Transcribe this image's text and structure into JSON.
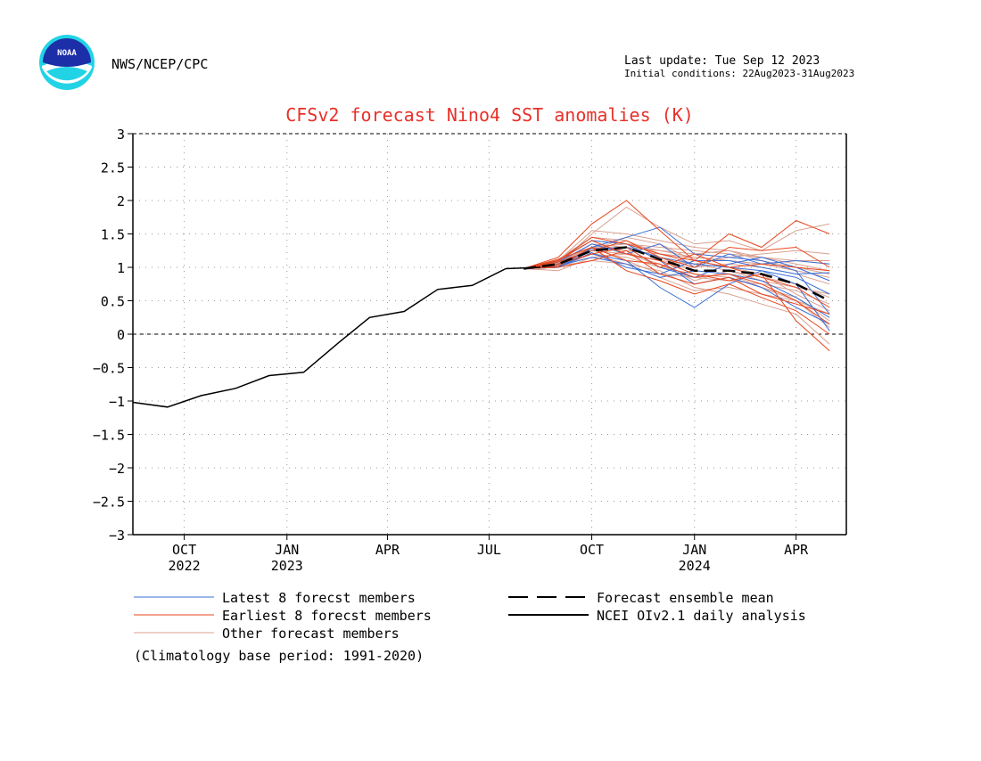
{
  "header": {
    "agency": "NWS/NCEP/CPC",
    "logo_text": "NOAA",
    "last_update": "Last update: Tue Sep 12 2023",
    "initial_conditions": "Initial conditions: 22Aug2023-31Aug2023"
  },
  "chart_data": {
    "type": "line",
    "title": "CFSv2 forecast Nino4 SST anomalies (K)",
    "xlabel": "",
    "ylabel": "",
    "ylim": [
      -3,
      3
    ],
    "yticks": [
      -3,
      -2.5,
      -2,
      -1.5,
      -1,
      -0.5,
      0,
      0.5,
      1,
      1.5,
      2,
      2.5,
      3
    ],
    "xlim": [
      "2022-08-16",
      "2024-05-16"
    ],
    "xticks": [
      {
        "date": "2022-10-01",
        "label": "OCT",
        "year": "2022"
      },
      {
        "date": "2023-01-01",
        "label": "JAN",
        "year": "2023"
      },
      {
        "date": "2023-04-01",
        "label": "APR",
        "year": ""
      },
      {
        "date": "2023-07-01",
        "label": "JUL",
        "year": ""
      },
      {
        "date": "2023-10-01",
        "label": "OCT",
        "year": ""
      },
      {
        "date": "2024-01-01",
        "label": "JAN",
        "year": "2024"
      },
      {
        "date": "2024-04-01",
        "label": "APR",
        "year": ""
      }
    ],
    "grid": true,
    "zero_line": true,
    "legend": {
      "placement": "bottom",
      "items": [
        {
          "label": "Latest 8 forecst members",
          "color": "#3a6fd8",
          "style": "thin"
        },
        {
          "label": "Earliest 8 forecst members",
          "color": "#e8461e",
          "style": "thin"
        },
        {
          "label": "Other forecast members",
          "color": "#d9a090",
          "style": "thin"
        },
        {
          "label": "Forecast ensemble mean",
          "color": "#000000",
          "style": "dashed"
        },
        {
          "label": "NCEI OIv2.1 daily analysis",
          "color": "#000000",
          "style": "solid"
        }
      ]
    },
    "note": "(Climatology base period: 1991-2020)",
    "colors": {
      "title": "#e8312a",
      "latest": "#3a6fd8",
      "earliest": "#e8461e",
      "other": "#d9a090"
    },
    "forecast_dates": [
      "2023-08-01",
      "2023-09-01",
      "2023-10-01",
      "2023-11-01",
      "2023-12-01",
      "2024-01-01",
      "2024-02-01",
      "2024-03-01",
      "2024-04-01",
      "2024-05-01"
    ],
    "analysis": {
      "name": "NCEI OIv2.1 daily analysis",
      "x": [
        "2022-08-16",
        "2022-09-16",
        "2022-10-16",
        "2022-11-16",
        "2022-12-16",
        "2023-01-16",
        "2023-02-16",
        "2023-03-16",
        "2023-04-16",
        "2023-05-16",
        "2023-06-16",
        "2023-07-16",
        "2023-08-16"
      ],
      "y": [
        -1.02,
        -1.09,
        -0.92,
        -0.81,
        -0.62,
        -0.57,
        -0.13,
        0.25,
        0.34,
        0.67,
        0.73,
        0.98,
        1.0
      ]
    },
    "ensemble_mean": {
      "name": "Forecast ensemble mean",
      "x": [
        "2023-08-01",
        "2023-09-01",
        "2023-10-01",
        "2023-11-01",
        "2023-12-01",
        "2024-01-01",
        "2024-02-01",
        "2024-03-01",
        "2024-04-01",
        "2024-05-01"
      ],
      "y": [
        0.98,
        1.05,
        1.25,
        1.3,
        1.12,
        0.95,
        0.95,
        0.9,
        0.75,
        0.5
      ]
    },
    "latest_members": [
      [
        0.98,
        1.0,
        1.3,
        1.45,
        1.6,
        1.2,
        1.15,
        1.1,
        0.95,
        0.3
      ],
      [
        0.98,
        1.05,
        1.2,
        1.1,
        0.7,
        0.4,
        0.75,
        0.95,
        0.75,
        0.05
      ],
      [
        0.98,
        1.0,
        1.25,
        1.3,
        1.0,
        0.85,
        1.05,
        1.15,
        1.0,
        0.8
      ],
      [
        0.98,
        1.08,
        1.35,
        1.2,
        1.35,
        1.0,
        1.2,
        1.05,
        1.1,
        1.05
      ],
      [
        0.98,
        1.02,
        1.15,
        1.05,
        0.85,
        0.95,
        0.9,
        0.8,
        0.55,
        0.25
      ],
      [
        0.98,
        1.1,
        1.4,
        1.35,
        1.1,
        0.75,
        0.85,
        0.7,
        0.4,
        0.15
      ],
      [
        0.98,
        1.05,
        1.28,
        1.3,
        1.15,
        1.05,
        1.0,
        0.95,
        0.85,
        0.6
      ],
      [
        0.98,
        1.0,
        1.22,
        1.0,
        0.9,
        1.1,
        1.1,
        1.0,
        0.9,
        0.92
      ]
    ],
    "earliest_members": [
      [
        0.98,
        1.15,
        1.65,
        2.0,
        1.55,
        1.1,
        1.5,
        1.3,
        1.7,
        1.5
      ],
      [
        0.98,
        1.1,
        1.4,
        1.2,
        1.1,
        0.9,
        0.8,
        0.9,
        0.2,
        -0.25
      ],
      [
        0.98,
        1.05,
        1.2,
        1.3,
        1.0,
        1.2,
        1.0,
        1.05,
        1.0,
        0.95
      ],
      [
        0.98,
        1.0,
        1.1,
        1.25,
        0.9,
        0.75,
        0.85,
        0.6,
        0.45,
        0.3
      ],
      [
        0.98,
        1.12,
        1.3,
        1.1,
        1.05,
        0.85,
        0.9,
        0.75,
        0.5,
        0.15
      ],
      [
        0.98,
        1.08,
        1.25,
        1.4,
        1.15,
        1.0,
        1.3,
        1.25,
        1.3,
        1.0
      ],
      [
        0.98,
        1.02,
        1.3,
        0.95,
        0.8,
        0.6,
        0.75,
        0.55,
        0.35,
        0.0
      ],
      [
        0.98,
        1.1,
        1.45,
        1.35,
        1.2,
        1.1,
        1.0,
        0.85,
        0.7,
        0.4
      ]
    ],
    "other_members": [
      [
        0.98,
        1.05,
        1.5,
        1.9,
        1.6,
        1.35,
        1.4,
        1.25,
        1.55,
        1.65
      ],
      [
        0.98,
        1.1,
        1.3,
        1.25,
        1.2,
        1.05,
        1.15,
        1.2,
        1.25,
        1.2
      ],
      [
        0.98,
        1.0,
        1.2,
        1.15,
        1.0,
        0.9,
        0.85,
        0.7,
        0.5,
        0.1
      ],
      [
        0.98,
        1.06,
        1.35,
        1.3,
        1.25,
        1.15,
        1.1,
        1.05,
        0.95,
        0.85
      ],
      [
        0.98,
        1.02,
        1.1,
        1.05,
        0.95,
        0.7,
        0.6,
        0.45,
        0.3,
        -0.15
      ],
      [
        0.98,
        1.12,
        1.4,
        1.35,
        1.3,
        1.25,
        1.2,
        1.15,
        1.1,
        1.05
      ],
      [
        0.98,
        0.95,
        1.15,
        1.2,
        1.05,
        0.8,
        0.95,
        0.85,
        0.75,
        0.55
      ],
      [
        0.98,
        1.08,
        1.25,
        1.45,
        1.35,
        1.1,
        1.0,
        0.9,
        0.6,
        0.35
      ],
      [
        0.98,
        1.0,
        1.3,
        1.1,
        0.9,
        0.85,
        0.8,
        0.75,
        0.65,
        0.45
      ],
      [
        0.98,
        1.1,
        1.55,
        1.5,
        1.4,
        1.3,
        1.25,
        1.1,
        1.0,
        0.9
      ],
      [
        0.98,
        1.04,
        1.2,
        1.3,
        1.15,
        0.95,
        0.9,
        0.7,
        0.55,
        0.2
      ],
      [
        0.98,
        1.06,
        1.35,
        1.25,
        1.0,
        1.0,
        1.05,
        1.0,
        0.9,
        0.75
      ],
      [
        0.98,
        1.0,
        1.2,
        1.05,
        0.85,
        0.65,
        0.7,
        0.6,
        0.5,
        0.3
      ],
      [
        0.98,
        1.12,
        1.45,
        1.4,
        1.2,
        1.15,
        1.1,
        1.05,
        1.1,
        1.1
      ],
      [
        0.98,
        1.03,
        1.25,
        1.2,
        1.1,
        1.05,
        0.95,
        0.8,
        0.7,
        0.6
      ],
      [
        0.98,
        1.07,
        1.3,
        1.35,
        1.25,
        1.2,
        1.25,
        1.15,
        1.05,
        0.95
      ]
    ]
  }
}
